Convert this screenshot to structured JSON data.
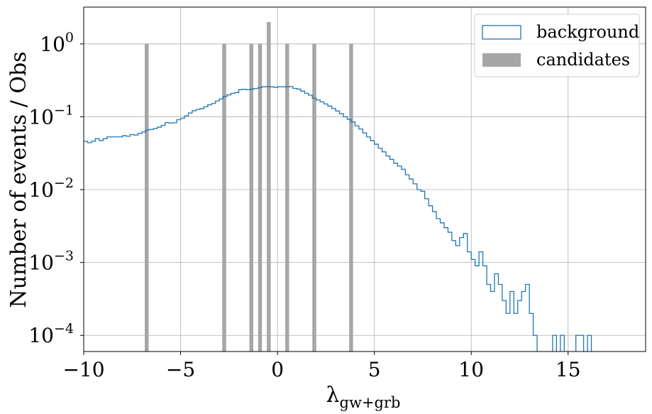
{
  "chart_data": {
    "type": "histogram",
    "xlabel": "λ",
    "xlabel_sub": "gw+grb",
    "ylabel": "Number of events / Obs",
    "xlim": [
      -10,
      19
    ],
    "ylim": [
      6e-05,
      3.2
    ],
    "y_scale": "log",
    "grid": true,
    "legend_position": "top-right",
    "x_ticks": [
      -10,
      -5,
      0,
      5,
      10,
      15
    ],
    "x_tick_labels": [
      "−10",
      "−5",
      "0",
      "5",
      "10",
      "15"
    ],
    "y_ticks": [
      0.0001,
      0.001,
      0.01,
      0.1,
      1
    ],
    "y_tick_labels": [
      {
        "base": "10",
        "exp": "−4"
      },
      {
        "base": "10",
        "exp": "−3"
      },
      {
        "base": "10",
        "exp": "−2"
      },
      {
        "base": "10",
        "exp": "−1"
      },
      {
        "base": "10",
        "exp": "0"
      }
    ],
    "series": [
      {
        "name": "background",
        "kind": "step",
        "color": "#1f77b4",
        "bin_width": 0.2,
        "x_start": -10.0,
        "values": [
          0.046,
          0.044,
          0.046,
          0.05,
          0.047,
          0.05,
          0.053,
          0.053,
          0.053,
          0.053,
          0.055,
          0.054,
          0.057,
          0.056,
          0.059,
          0.062,
          0.066,
          0.067,
          0.069,
          0.072,
          0.076,
          0.083,
          0.082,
          0.083,
          0.091,
          0.095,
          0.103,
          0.113,
          0.121,
          0.126,
          0.129,
          0.137,
          0.146,
          0.152,
          0.165,
          0.176,
          0.19,
          0.2,
          0.21,
          0.215,
          0.236,
          0.238,
          0.235,
          0.24,
          0.245,
          0.252,
          0.258,
          0.26,
          0.258,
          0.253,
          0.258,
          0.258,
          0.258,
          0.26,
          0.245,
          0.24,
          0.225,
          0.21,
          0.198,
          0.18,
          0.17,
          0.16,
          0.15,
          0.14,
          0.13,
          0.12,
          0.11,
          0.1,
          0.092,
          0.085,
          0.075,
          0.068,
          0.06,
          0.053,
          0.047,
          0.042,
          0.037,
          0.033,
          0.029,
          0.026,
          0.023,
          0.021,
          0.019,
          0.016,
          0.014,
          0.012,
          0.01,
          0.0095,
          0.0075,
          0.006,
          0.005,
          0.004,
          0.0035,
          0.003,
          0.0026,
          0.002,
          0.0017,
          0.0022,
          0.0025,
          0.0014,
          0.0011,
          0.0009,
          0.0014,
          0.0009,
          0.0005,
          0.0004,
          0.0007,
          0.0005,
          0.0003,
          0.0002,
          0.0004,
          0.0002,
          0.0003,
          0.0004,
          0.0005,
          0.0002,
          0.0001,
          0.0,
          0.0,
          0.0,
          0.0,
          0.0001,
          0.0,
          0.0001,
          0.0,
          0.0,
          0.0,
          0.0001,
          0.0001,
          0.0,
          0.0001,
          0.0,
          0.0,
          0.0,
          0.0,
          0.0,
          0.0
        ]
      },
      {
        "name": "candidates",
        "kind": "bar",
        "color": "#a6a6a6",
        "bar_width": 0.2,
        "x": [
          -6.75,
          -2.75,
          -1.35,
          -0.9,
          -0.45,
          0.5,
          1.9,
          3.8
        ],
        "values": [
          1,
          1,
          1,
          1,
          2,
          1,
          1,
          1
        ]
      }
    ]
  }
}
